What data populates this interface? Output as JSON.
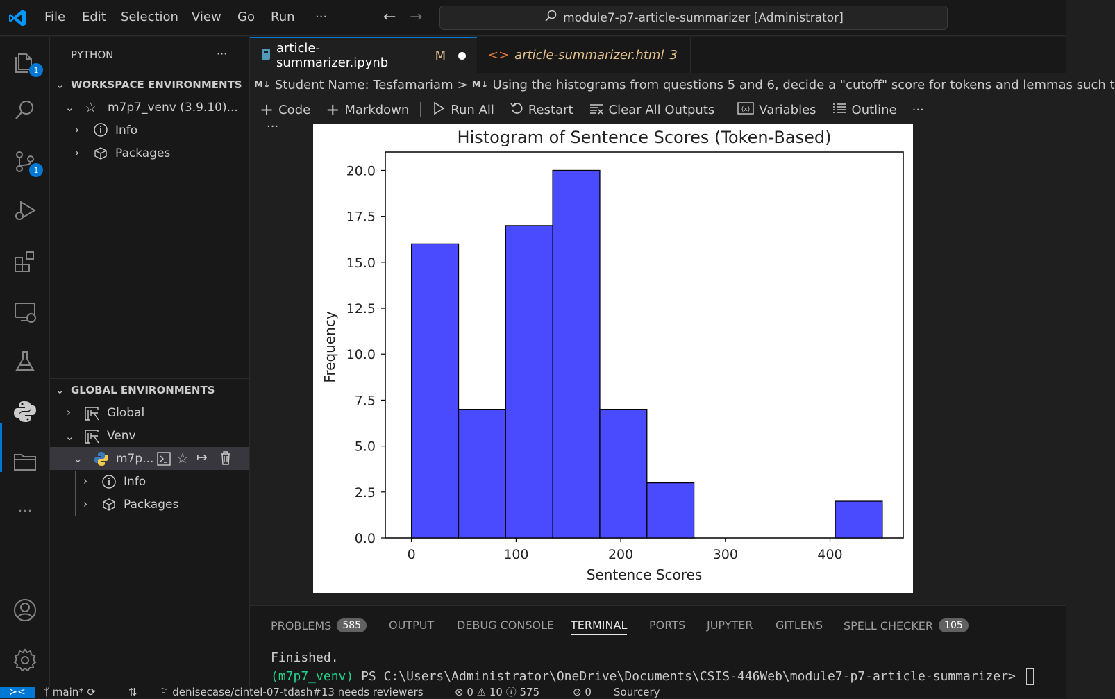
{
  "titlebar": {
    "menu": [
      "File",
      "Edit",
      "Selection",
      "View",
      "Go",
      "Run",
      "···"
    ],
    "search_text": "module7-p7-article-summarizer [Administrator]",
    "back_arrow": "←",
    "forward_arrow": "→"
  },
  "activitybar": {
    "explorer_badge": "1",
    "scm_badge": "1",
    "more": "···"
  },
  "sidebar": {
    "title": "PYTHON",
    "more": "···",
    "workspace_header": "WORKSPACE ENVIRONMENTS",
    "workspace_env": "m7p7_venv (3.9.10)...",
    "ws_info": "Info",
    "ws_packages": "Packages",
    "global_header": "GLOBAL ENVIRONMENTS",
    "global_item": "Global",
    "venv_item": "Venv",
    "venv_env": "m7p...",
    "venv_info": "Info",
    "venv_packages": "Packages"
  },
  "tabs": [
    {
      "label": "article-summarizer.ipynb",
      "status": "M"
    },
    {
      "label": "article-summarizer.html",
      "status": "3"
    }
  ],
  "breadcrumb": {
    "md_icon": "M↓",
    "part1": "Student Name: Tesfamariam",
    "sep": ">",
    "part2": "Using the histograms from questions 5 and 6, decide a \"cutoff\" score for tokens and lemmas such t"
  },
  "toolbar": {
    "code": "Code",
    "markdown": "Markdown",
    "run_all": "Run All",
    "restart": "Restart",
    "clear_outputs": "Clear All Outputs",
    "variables": "Variables",
    "outline": "Outline",
    "more": "···"
  },
  "cell_more": "···",
  "chart_data": {
    "type": "bar",
    "title": "Histogram of Sentence Scores (Token-Based)",
    "xlabel": "Sentence Scores",
    "ylabel": "Frequency",
    "bins": [
      [
        0,
        45
      ],
      [
        45,
        90
      ],
      [
        90,
        135
      ],
      [
        135,
        180
      ],
      [
        180,
        225
      ],
      [
        225,
        270
      ],
      [
        270,
        315
      ],
      [
        315,
        360
      ],
      [
        360,
        405
      ],
      [
        405,
        450
      ]
    ],
    "values": [
      16,
      7,
      17,
      20,
      7,
      3,
      0,
      0,
      0,
      2
    ],
    "xlim": [
      -25,
      470
    ],
    "ylim": [
      0,
      21
    ],
    "xticks": [
      0,
      100,
      200,
      300,
      400
    ],
    "yticks": [
      "0.0",
      "2.5",
      "5.0",
      "7.5",
      "10.0",
      "12.5",
      "15.0",
      "17.5",
      "20.0"
    ],
    "bar_color": "#4a4aff",
    "edge_color": "#000000",
    "grid": false
  },
  "panel": {
    "tabs": [
      "PROBLEMS",
      "OUTPUT",
      "DEBUG CONSOLE",
      "TERMINAL",
      "PORTS",
      "JUPYTER",
      "GITLENS",
      "SPELL CHECKER"
    ],
    "problems_count": "585",
    "spell_count": "105",
    "terminal_line1": "Finished.",
    "terminal_env": "(m7p7_venv)",
    "terminal_prompt": "PS C:\\Users\\Administrator\\OneDrive\\Documents\\CSIS-446Web\\module7-p7-article-summarizer>"
  },
  "statusbar": {
    "branch": "main*",
    "pr": "denisecase/cintel-07-tdash#13 needs reviewers",
    "errors": "0",
    "warnings": "10",
    "infos": "575",
    "ports": "0",
    "sourcery": "Sourcery"
  },
  "colors": {
    "accent": "#0078d4",
    "modified": "#e2c08d"
  }
}
